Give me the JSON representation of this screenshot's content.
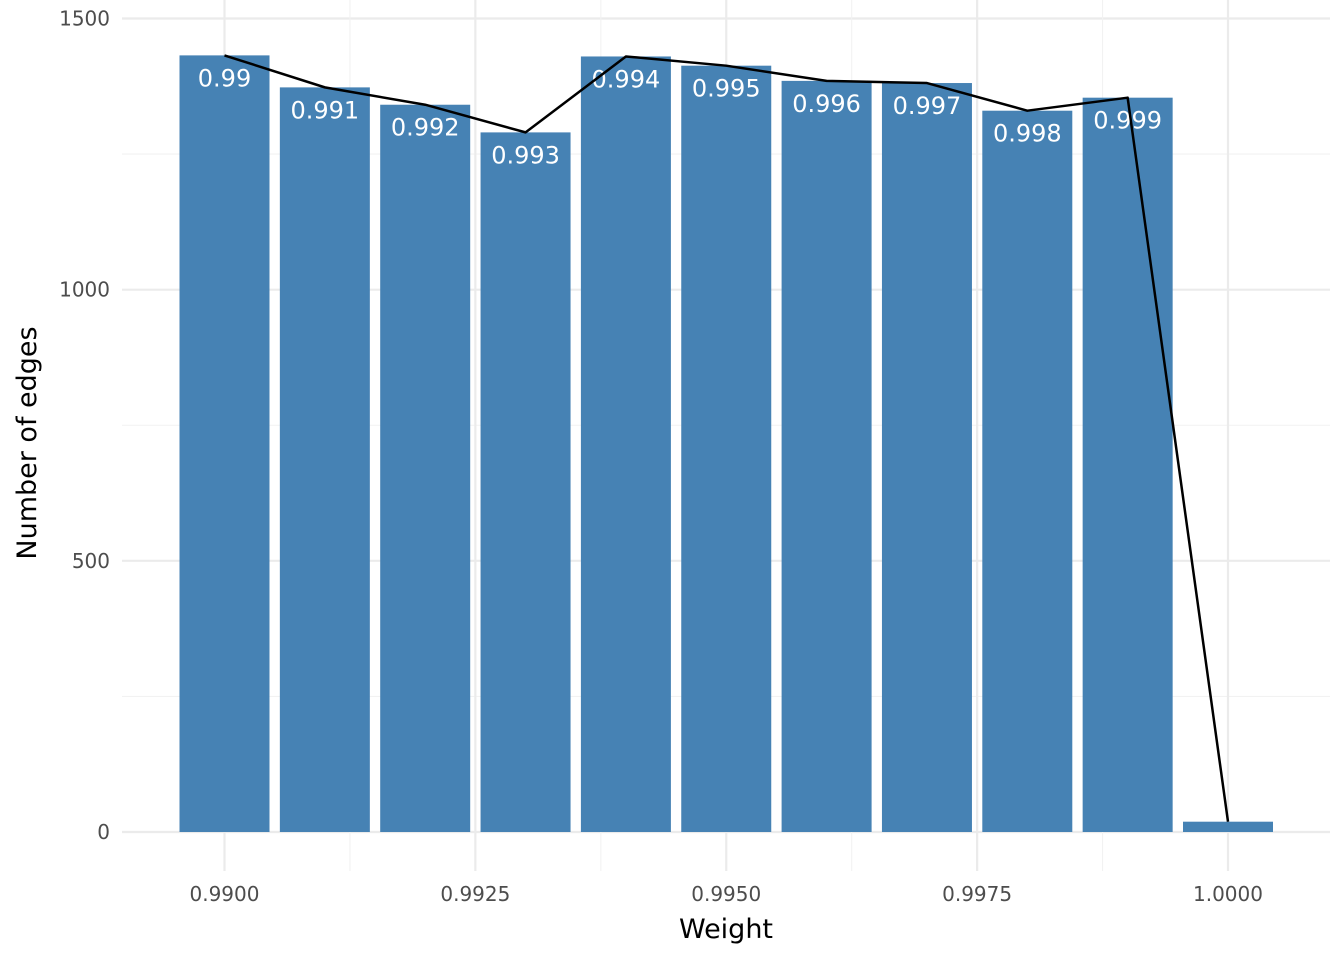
{
  "chart_data": {
    "type": "bar",
    "title": "",
    "xlabel": "Weight",
    "ylabel": "Number of edges",
    "x": [
      0.99,
      0.991,
      0.992,
      0.993,
      0.994,
      0.995,
      0.996,
      0.997,
      0.998,
      0.999,
      1.0
    ],
    "values": [
      1432,
      1373,
      1341,
      1290,
      1430,
      1413,
      1385,
      1381,
      1330,
      1354,
      19
    ],
    "bar_labels": [
      "0.99",
      "0.991",
      "0.992",
      "0.993",
      "0.994",
      "0.995",
      "0.996",
      "0.997",
      "0.998",
      "0.999",
      ""
    ],
    "line_overlay": true,
    "xlim": [
      0.989,
      1.01
    ],
    "ylim": [
      -60,
      1500
    ],
    "x_ticks": [
      0.99,
      0.9925,
      0.995,
      0.9975,
      1.0
    ],
    "x_tick_labels": [
      "0.9900",
      "0.9925",
      "0.9950",
      "0.9975",
      "1.0000"
    ],
    "y_ticks": [
      0,
      500,
      1000,
      1500
    ],
    "y_tick_labels": [
      "0",
      "500",
      "1000",
      "1500"
    ],
    "grid": true,
    "legend": "none",
    "colors": {
      "bar": "#4682b4",
      "line": "#000000"
    }
  }
}
